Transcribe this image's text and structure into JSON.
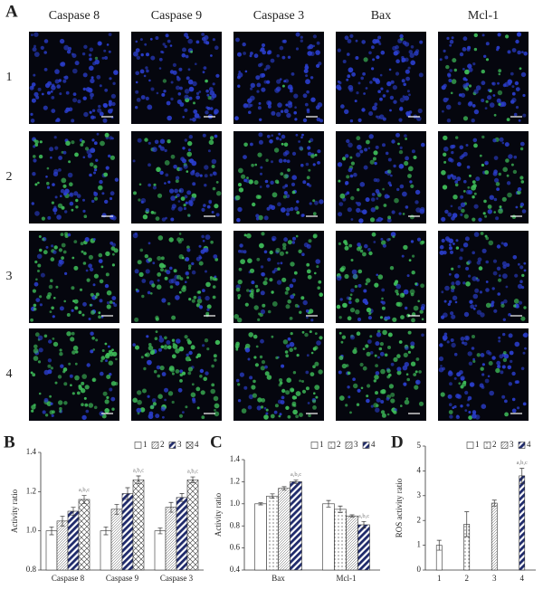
{
  "panel_a": {
    "label": "A",
    "columns": [
      "Caspase 8",
      "Caspase 9",
      "Caspase 3",
      "Bax",
      "Mcl-1"
    ],
    "rows": [
      "1",
      "2",
      "3",
      "4"
    ]
  },
  "chart_data": [
    {
      "type": "bar",
      "panel_label": "B",
      "y_label": "Activity ratio",
      "categories": [
        "Caspase 8",
        "Caspase 9",
        "Caspase 3"
      ],
      "ylim": [
        0.8,
        1.4
      ],
      "yticks": [
        0.8,
        {
          "value": 1,
          "label": "1.0"
        },
        1.2,
        1.4
      ],
      "legend": "top-right",
      "series": [
        {
          "name": "1",
          "pattern": "white",
          "values": [
            1.0,
            1.0,
            1.0
          ],
          "errors": [
            0.02,
            0.02,
            0.015
          ]
        },
        {
          "name": "2",
          "pattern": "diag",
          "values": [
            1.05,
            1.11,
            1.12
          ],
          "errors": [
            0.025,
            0.025,
            0.025
          ]
        },
        {
          "name": "3",
          "pattern": "navy",
          "values": [
            1.1,
            1.19,
            1.17
          ],
          "errors": [
            0.02,
            0.03,
            0.02
          ]
        },
        {
          "name": "4",
          "pattern": "cross",
          "values": [
            1.16,
            1.26,
            1.26
          ],
          "errors": [
            0.02,
            0.02,
            0.015
          ],
          "annotations": [
            "a,b,c",
            "a,b,c",
            "a,b,c"
          ]
        }
      ]
    },
    {
      "type": "bar",
      "panel_label": "C",
      "y_label": "Activity ratio",
      "categories": [
        "Bax",
        "Mcl-1"
      ],
      "ylim": [
        0.4,
        1.4
      ],
      "yticks": [
        0.4,
        0.6,
        0.8,
        {
          "value": 1,
          "label": "1.0"
        },
        1.2,
        1.4
      ],
      "legend": "top-right",
      "series": [
        {
          "name": "1",
          "pattern": "white",
          "values": [
            1.0,
            1.0
          ],
          "errors": [
            0.01,
            0.03
          ]
        },
        {
          "name": "2",
          "pattern": "dots",
          "values": [
            1.07,
            0.95
          ],
          "errors": [
            0.02,
            0.03
          ]
        },
        {
          "name": "3",
          "pattern": "diag",
          "values": [
            1.14,
            0.89
          ],
          "errors": [
            0.015,
            0.01
          ]
        },
        {
          "name": "4",
          "pattern": "navy",
          "values": [
            1.2,
            0.81
          ],
          "errors": [
            0.015,
            0.03
          ],
          "annotations": [
            "a,b,c",
            "a,b,c"
          ]
        }
      ]
    },
    {
      "type": "bar",
      "panel_label": "D",
      "y_label": "ROS activity ratio",
      "categories": [
        "1",
        "2",
        "3",
        "4"
      ],
      "ylim": [
        0,
        5
      ],
      "yticks": [
        0,
        1,
        2,
        3,
        4,
        5
      ],
      "legend": "top-right",
      "series": [
        {
          "name": "1",
          "pattern": "white",
          "values": [
            1.0,
            null,
            null,
            null
          ],
          "errors": [
            0.2,
            null,
            null,
            null
          ]
        },
        {
          "name": "2",
          "pattern": "dots",
          "values": [
            null,
            1.85,
            null,
            null
          ],
          "errors": [
            null,
            0.5,
            null,
            null
          ]
        },
        {
          "name": "3",
          "pattern": "diag",
          "values": [
            null,
            null,
            2.7,
            null
          ],
          "errors": [
            null,
            null,
            0.12,
            null
          ]
        },
        {
          "name": "4",
          "pattern": "navy",
          "values": [
            null,
            null,
            null,
            3.8
          ],
          "errors": [
            null,
            null,
            null,
            0.3
          ],
          "annotations": [
            null,
            null,
            null,
            "a,b,c"
          ]
        }
      ]
    }
  ]
}
